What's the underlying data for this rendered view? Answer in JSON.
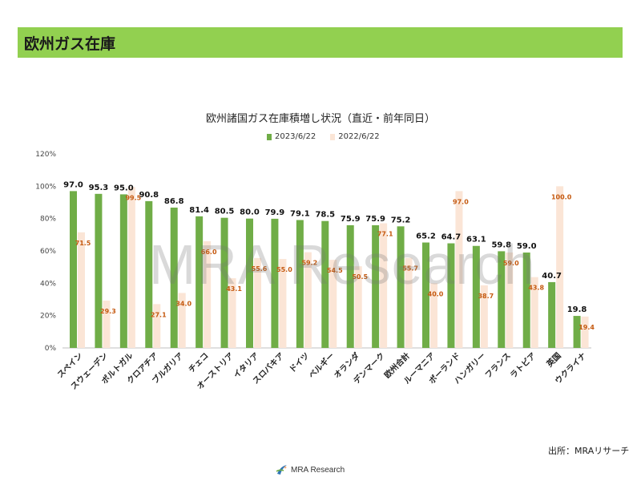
{
  "header": {
    "title": "欧州ガス在庫"
  },
  "colors": {
    "header_bg": "#92d050",
    "series_2023": "#70ad47",
    "series_2022": "#fbe5d6",
    "label_2022": "#c55a11"
  },
  "watermark": "MRA Research",
  "source": "出所：MRAリサーチ",
  "footer": {
    "logo_text": "MRA Research",
    "logo_icon": "mra-swoosh-icon"
  },
  "chart_data": {
    "type": "bar",
    "title": "欧州諸国ガス在庫積増し状況（直近・前年同日）",
    "categories": [
      "スペイン",
      "スウェーデン",
      "ポルトガル",
      "クロアチア",
      "ブルガリア",
      "チェコ",
      "オーストリア",
      "イタリア",
      "スロバキア",
      "ドイツ",
      "ベルギー",
      "オランダ",
      "デンマーク",
      "欧州合計",
      "ルーマニア",
      "ポーランド",
      "ハンガリー",
      "フランス",
      "ラトビア",
      "英国",
      "ウクライナ"
    ],
    "series": [
      {
        "name": "2023/6/22",
        "values": [
          97.0,
          95.3,
          95.0,
          90.8,
          86.8,
          81.4,
          80.5,
          80.0,
          79.9,
          79.1,
          78.5,
          75.9,
          75.9,
          75.2,
          65.2,
          64.7,
          63.1,
          59.8,
          59.0,
          40.7,
          19.8
        ]
      },
      {
        "name": "2022/6/22",
        "values": [
          71.5,
          29.3,
          99.5,
          27.1,
          34.0,
          66.0,
          43.1,
          55.6,
          55.0,
          59.2,
          54.5,
          50.5,
          77.1,
          55.7,
          40.0,
          97.0,
          38.7,
          59.0,
          43.8,
          100.0,
          19.4
        ]
      }
    ],
    "y_ticks": [
      "0%",
      "20%",
      "40%",
      "60%",
      "80%",
      "100%",
      "120%"
    ],
    "ylim": [
      0,
      120
    ],
    "legend_position": "top-center",
    "grid": false
  }
}
